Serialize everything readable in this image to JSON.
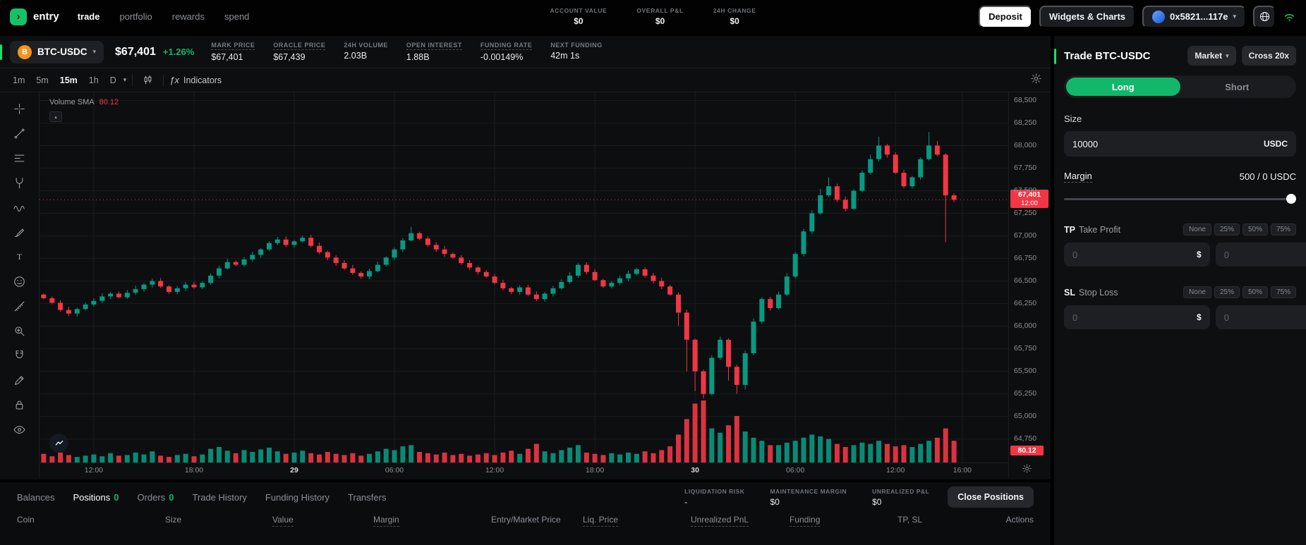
{
  "topnav": {
    "brand": "entry",
    "items": [
      {
        "label": "trade",
        "active": true
      },
      {
        "label": "portfolio"
      },
      {
        "label": "rewards"
      },
      {
        "label": "spend"
      }
    ],
    "stats": [
      {
        "label": "ACCOUNT VALUE",
        "value": "$0"
      },
      {
        "label": "OVERALL P&L",
        "value": "$0"
      },
      {
        "label": "24H CHANGE",
        "value": "$0"
      }
    ],
    "deposit_label": "Deposit",
    "widgets_label": "Widgets & Charts",
    "wallet_address": "0x5821...117e"
  },
  "symbol_bar": {
    "pair": "BTC-USDC",
    "coin_letter": "B",
    "price": "$67,401",
    "change": "+1.26%",
    "stats": [
      {
        "label": "MARK PRICE",
        "value": "$67,401",
        "hint": true
      },
      {
        "label": "ORACLE PRICE",
        "value": "$67,439",
        "hint": true
      },
      {
        "label": "24H VOLUME",
        "value": "2.03B",
        "hint": false
      },
      {
        "label": "OPEN INTEREST",
        "value": "1.88B",
        "hint": true
      },
      {
        "label": "FUNDING RATE",
        "value": "-0.00149%",
        "hint": true
      },
      {
        "label": "NEXT FUNDING",
        "value": "42m 1s",
        "hint": false
      }
    ]
  },
  "chart_toolbar": {
    "timeframes": [
      "1m",
      "5m",
      "15m",
      "1h",
      "D"
    ],
    "active_timeframe": "15m",
    "fx_label": "ƒx",
    "indicators_label": "Indicators"
  },
  "drawing_toolbar": {
    "tools": [
      "crosshair",
      "trend-line",
      "fib-retracement",
      "pitchfork",
      "wave-pattern",
      "brush",
      "text",
      "emoji",
      "ruler",
      "zoom-in",
      "magnet",
      "pencil",
      "lock",
      "eye"
    ]
  },
  "chart_overlay": {
    "legend_title": "Volume SMA",
    "legend_value": "80.12",
    "price_badge": "67,401",
    "price_badge_time": "12:00",
    "volume_badge": "80.12",
    "tv_logo": "TV",
    "collapse_caret": "▴"
  },
  "chart_data": {
    "type": "candlestick",
    "symbol": "BTC-USDC",
    "interval": "15m",
    "ylim": [
      64490,
      68590
    ],
    "y_ticks": [
      68500,
      68250,
      68000,
      67750,
      67500,
      67250,
      67000,
      66750,
      66500,
      66250,
      66000,
      65750,
      65500,
      65250,
      65000,
      64750
    ],
    "x_ticks": [
      {
        "slot": 6.5,
        "label": "12:00"
      },
      {
        "slot": 18.5,
        "label": "18:00"
      },
      {
        "slot": 30.5,
        "label": "29",
        "major": true
      },
      {
        "slot": 42.5,
        "label": "06:00"
      },
      {
        "slot": 54.5,
        "label": "12:00"
      },
      {
        "slot": 66.5,
        "label": "18:00"
      },
      {
        "slot": 78.5,
        "label": "30",
        "major": true
      },
      {
        "slot": 90.5,
        "label": "06:00"
      },
      {
        "slot": 102.5,
        "label": "12:00"
      },
      {
        "slot": 110.5,
        "label": "16:00"
      }
    ],
    "slots": 116,
    "open_first": 66350,
    "closes": [
      66310,
      66260,
      66180,
      66140,
      66190,
      66240,
      66280,
      66330,
      66360,
      66320,
      66370,
      66410,
      66460,
      66500,
      66440,
      66380,
      66420,
      66460,
      66430,
      66480,
      66560,
      66640,
      66710,
      66680,
      66740,
      66790,
      66850,
      66920,
      66960,
      66900,
      66940,
      66980,
      66890,
      66820,
      66760,
      66700,
      66640,
      66590,
      66550,
      66610,
      66680,
      66760,
      66850,
      66950,
      67030,
      66970,
      66900,
      66850,
      66800,
      66760,
      66700,
      66650,
      66600,
      66550,
      66480,
      66420,
      66380,
      66430,
      66350,
      66300,
      66360,
      66420,
      66490,
      66560,
      66680,
      66600,
      66510,
      66440,
      66480,
      66530,
      66580,
      66630,
      66560,
      66500,
      66440,
      66350,
      66150,
      65850,
      65500,
      65250,
      65650,
      65850,
      65550,
      65350,
      65700,
      66050,
      66300,
      66200,
      66350,
      66550,
      66800,
      67050,
      67250,
      67450,
      67550,
      67400,
      67300,
      67500,
      67700,
      67850,
      68000,
      67900,
      67700,
      67550,
      67650,
      67850,
      68000,
      67900,
      67450,
      67401
    ],
    "wick_high": {
      "44": 67100,
      "93": 67520,
      "94": 67650,
      "99": 67900,
      "100": 68100,
      "106": 68150,
      "107": 68050
    },
    "wick_low": {
      "76": 66000,
      "77": 65500,
      "78": 65280,
      "79": 65200,
      "82": 65400,
      "83": 65250,
      "84": 65300,
      "108": 66930
    },
    "volumes": [
      14,
      10,
      16,
      12,
      9,
      11,
      13,
      10,
      15,
      11,
      12,
      16,
      13,
      18,
      11,
      9,
      12,
      14,
      10,
      13,
      22,
      25,
      19,
      15,
      20,
      17,
      21,
      24,
      18,
      14,
      16,
      19,
      15,
      13,
      17,
      14,
      12,
      15,
      11,
      14,
      18,
      22,
      20,
      26,
      28,
      17,
      15,
      13,
      16,
      12,
      14,
      11,
      13,
      15,
      12,
      16,
      19,
      14,
      22,
      30,
      18,
      15,
      20,
      24,
      28,
      16,
      14,
      12,
      15,
      13,
      16,
      14,
      18,
      15,
      20,
      26,
      45,
      70,
      95,
      100,
      55,
      48,
      60,
      75,
      50,
      40,
      35,
      28,
      28,
      32,
      35,
      40,
      45,
      42,
      38,
      30,
      25,
      28,
      32,
      30,
      35,
      30,
      26,
      28,
      25,
      30,
      35,
      40,
      55,
      35
    ],
    "last_price": 67401,
    "last_price_time": "12:00",
    "volume_sma": 80.12,
    "colors": {
      "up": "#089981",
      "down": "#f23645"
    }
  },
  "order_panel": {
    "title": "Trade BTC-USDC",
    "order_type": "Market",
    "leverage": "Cross 20x",
    "side_long": "Long",
    "side_short": "Short",
    "size_label": "Size",
    "size_value": "10000",
    "size_currency": "USDC",
    "margin_label": "Margin",
    "margin_value": "500 / 0 USDC",
    "tp": {
      "prefix": "TP",
      "label": "Take Profit",
      "chips": [
        "None",
        "25%",
        "50%",
        "75%"
      ],
      "price_placeholder": "0",
      "pct_placeholder": "0",
      "suffix": "$"
    },
    "sl": {
      "prefix": "SL",
      "label": "Stop Loss",
      "chips": [
        "None",
        "25%",
        "50%",
        "75%"
      ],
      "price_placeholder": "0",
      "pct_placeholder": "0",
      "suffix": "$"
    }
  },
  "bottom_panel": {
    "tabs": [
      {
        "label": "Balances"
      },
      {
        "label": "Positions",
        "count": "0",
        "active": true
      },
      {
        "label": "Orders",
        "count": "0"
      },
      {
        "label": "Trade History"
      },
      {
        "label": "Funding History"
      },
      {
        "label": "Transfers"
      }
    ],
    "stats": [
      {
        "label": "LIQUIDATION RISK",
        "value": "-"
      },
      {
        "label": "MAINTENANCE MARGIN",
        "value": "$0"
      },
      {
        "label": "UNREALIZED P&L",
        "value": "$0"
      }
    ],
    "close_button": "Close Positions",
    "columns": [
      {
        "label": "Coin"
      },
      {
        "label": "Size"
      },
      {
        "label": "Value",
        "hint": true
      },
      {
        "label": "Margin",
        "hint": true
      },
      {
        "label": "Entry/Market Price"
      },
      {
        "label": "Liq. Price",
        "hint": true
      },
      {
        "label": "Unrealized PnL",
        "hint": true
      },
      {
        "label": "Funding",
        "hint": true
      },
      {
        "label": "TP, SL"
      },
      {
        "label": "Actions"
      }
    ]
  }
}
